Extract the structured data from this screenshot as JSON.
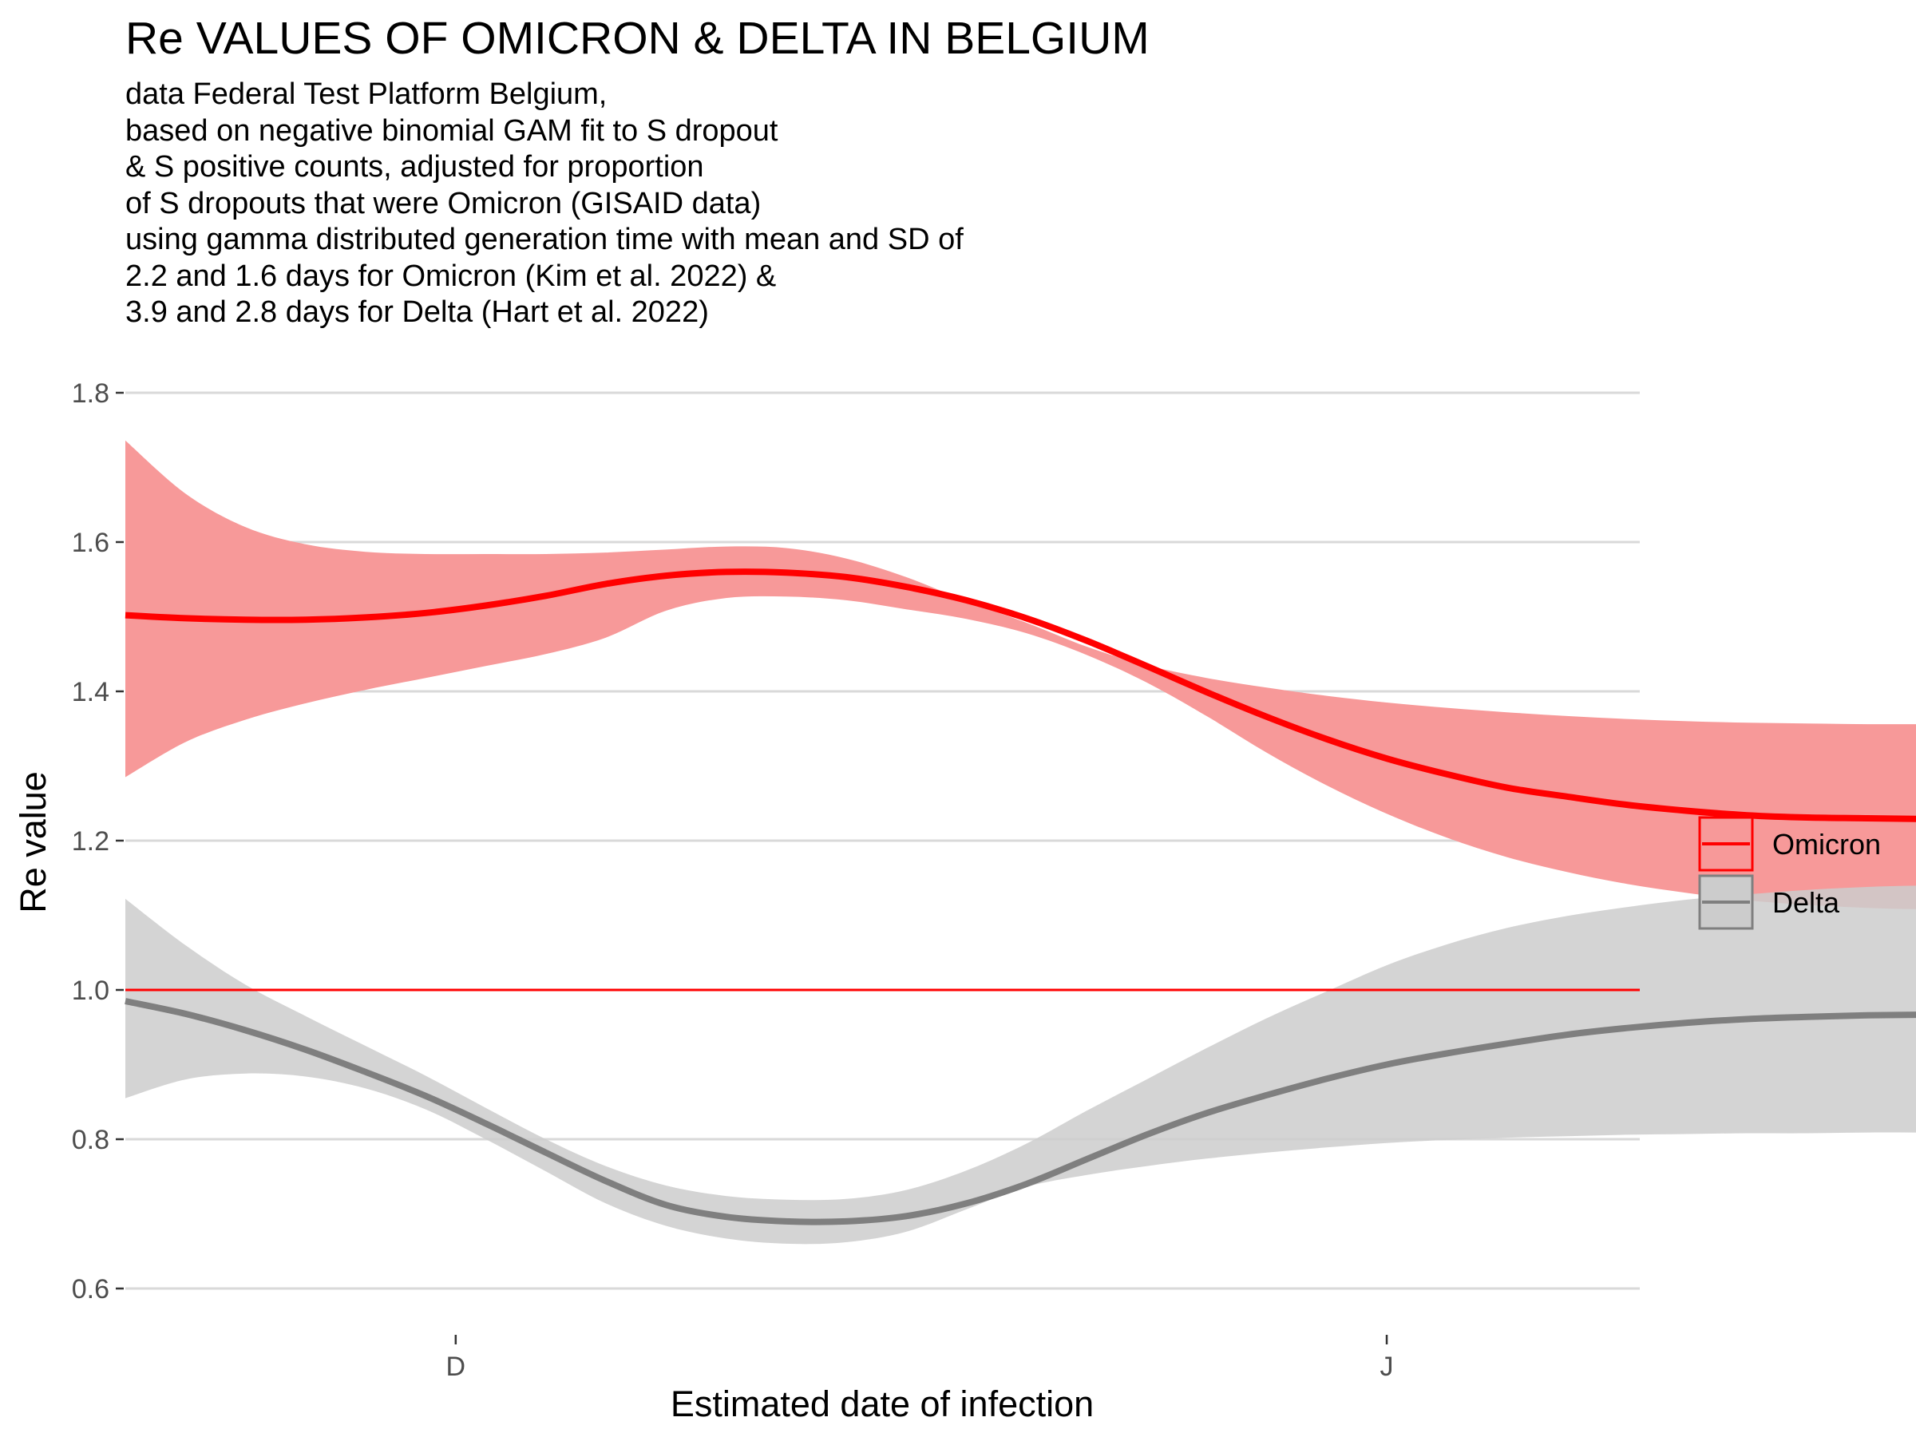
{
  "title": "Re VALUES OF OMICRON & DELTA IN BELGIUM",
  "subtitle_lines": [
    "data Federal Test Platform Belgium,",
    "based on negative binomial GAM fit to S dropout",
    "& S positive counts, adjusted for proportion",
    "of S dropouts that were Omicron (GISAID data)",
    "using gamma distributed generation time with mean and SD of",
    "2.2 and 1.6 days for Omicron (Kim et al. 2022) &",
    "3.9 and 2.8 days for Delta (Hart et al. 2022)"
  ],
  "chart_data": {
    "type": "line",
    "title": "Re VALUES OF OMICRON & DELTA IN BELGIUM",
    "xlabel": "Estimated date of infection",
    "ylabel": "Re value",
    "x_unit": "days",
    "x_ticks": [
      {
        "x": "2021-12-01",
        "label": "D"
      },
      {
        "x": "2022-01-01",
        "label": "J"
      }
    ],
    "xlim": [
      "2021-11-20",
      "2022-01-21"
    ],
    "ylim": [
      0.6,
      1.8
    ],
    "y_ticks": [
      0.6,
      0.8,
      1.0,
      1.2,
      1.4,
      1.6,
      1.8
    ],
    "grid": "horizontal major lines",
    "legend_position": "right",
    "reference_line": {
      "y": 1.0,
      "color": "#ff0000"
    },
    "series": [
      {
        "name": "Omicron",
        "color": "#ff0000",
        "band_color": "#f79999",
        "x": [
          "2021-11-20",
          "2021-11-22",
          "2021-11-24",
          "2021-11-26",
          "2021-11-28",
          "2021-11-30",
          "2021-12-02",
          "2021-12-04",
          "2021-12-06",
          "2021-12-08",
          "2021-12-10",
          "2021-12-12",
          "2021-12-14",
          "2021-12-16",
          "2021-12-18",
          "2021-12-20",
          "2021-12-22",
          "2021-12-24",
          "2021-12-26",
          "2021-12-28",
          "2021-12-30",
          "2022-01-01",
          "2022-01-03",
          "2022-01-05",
          "2022-01-07",
          "2022-01-09",
          "2022-01-11",
          "2022-01-13",
          "2022-01-15",
          "2022-01-17",
          "2022-01-19",
          "2022-01-21"
        ],
        "y": [
          1.502,
          1.498,
          1.496,
          1.496,
          1.499,
          1.505,
          1.515,
          1.528,
          1.544,
          1.555,
          1.56,
          1.559,
          1.553,
          1.54,
          1.522,
          1.498,
          1.468,
          1.434,
          1.399,
          1.366,
          1.336,
          1.31,
          1.289,
          1.271,
          1.259,
          1.248,
          1.24,
          1.234,
          1.231,
          1.23,
          1.229,
          1.229
        ],
        "lower": [
          1.285,
          1.332,
          1.362,
          1.384,
          1.402,
          1.418,
          1.434,
          1.45,
          1.472,
          1.508,
          1.525,
          1.527,
          1.522,
          1.51,
          1.497,
          1.478,
          1.449,
          1.412,
          1.367,
          1.318,
          1.274,
          1.236,
          1.204,
          1.178,
          1.158,
          1.142,
          1.13,
          1.12,
          1.114,
          1.11,
          1.108,
          1.108
        ],
        "upper": [
          1.736,
          1.665,
          1.62,
          1.597,
          1.587,
          1.584,
          1.584,
          1.584,
          1.586,
          1.59,
          1.594,
          1.592,
          1.578,
          1.553,
          1.521,
          1.492,
          1.46,
          1.435,
          1.418,
          1.405,
          1.394,
          1.385,
          1.378,
          1.372,
          1.367,
          1.363,
          1.36,
          1.358,
          1.357,
          1.356,
          1.356,
          1.355
        ]
      },
      {
        "name": "Delta",
        "color": "#7f7f7f",
        "band_color": "#cccccc",
        "x": [
          "2021-11-20",
          "2021-11-22",
          "2021-11-24",
          "2021-11-26",
          "2021-11-28",
          "2021-11-30",
          "2021-12-02",
          "2021-12-04",
          "2021-12-06",
          "2021-12-08",
          "2021-12-10",
          "2021-12-12",
          "2021-12-14",
          "2021-12-16",
          "2021-12-18",
          "2021-12-20",
          "2021-12-22",
          "2021-12-24",
          "2021-12-26",
          "2021-12-28",
          "2021-12-30",
          "2022-01-01",
          "2022-01-03",
          "2022-01-05",
          "2022-01-07",
          "2022-01-09",
          "2022-01-11",
          "2022-01-13",
          "2022-01-15",
          "2022-01-17",
          "2022-01-19",
          "2022-01-21"
        ],
        "y": [
          0.985,
          0.968,
          0.946,
          0.92,
          0.89,
          0.858,
          0.821,
          0.782,
          0.744,
          0.712,
          0.696,
          0.69,
          0.69,
          0.697,
          0.714,
          0.74,
          0.773,
          0.806,
          0.835,
          0.859,
          0.881,
          0.9,
          0.915,
          0.928,
          0.94,
          0.949,
          0.956,
          0.961,
          0.964,
          0.966,
          0.967,
          0.967
        ],
        "lower": [
          0.855,
          0.88,
          0.888,
          0.884,
          0.868,
          0.84,
          0.8,
          0.757,
          0.714,
          0.684,
          0.667,
          0.66,
          0.662,
          0.676,
          0.706,
          0.736,
          0.752,
          0.764,
          0.774,
          0.782,
          0.789,
          0.795,
          0.799,
          0.802,
          0.804,
          0.806,
          0.807,
          0.808,
          0.808,
          0.809,
          0.809,
          0.81
        ],
        "upper": [
          1.122,
          1.06,
          1.007,
          0.965,
          0.925,
          0.885,
          0.842,
          0.8,
          0.764,
          0.738,
          0.724,
          0.719,
          0.72,
          0.732,
          0.758,
          0.794,
          0.838,
          0.88,
          0.922,
          0.962,
          0.998,
          1.033,
          1.061,
          1.083,
          1.099,
          1.111,
          1.121,
          1.128,
          1.134,
          1.138,
          1.14,
          1.142
        ]
      }
    ]
  }
}
